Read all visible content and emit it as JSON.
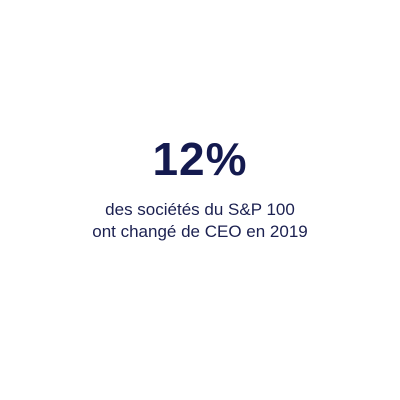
{
  "stat": {
    "value": "12%",
    "caption": [
      "des sociétés du S&P 100",
      "ont changé de CEO en 2019"
    ]
  }
}
